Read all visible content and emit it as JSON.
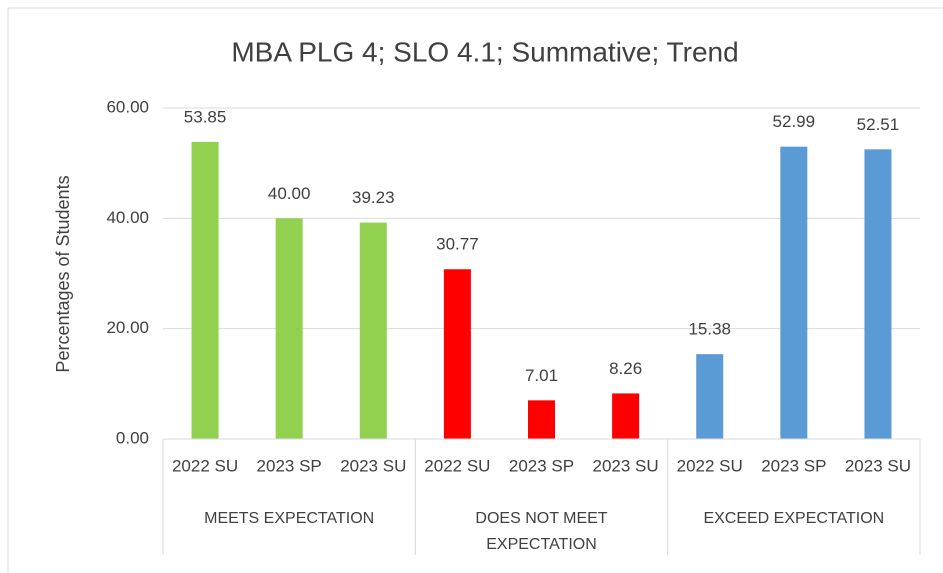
{
  "chart_data": {
    "type": "bar",
    "title": "MBA PLG 4; SLO 4.1; Summative; Trend",
    "ylabel": "Percentages of Students",
    "ylim": [
      0,
      60
    ],
    "yticks": [
      {
        "value": 0,
        "label": "0.00"
      },
      {
        "value": 20,
        "label": "20.00"
      },
      {
        "value": 40,
        "label": "40.00"
      },
      {
        "value": 60,
        "label": "60.00"
      }
    ],
    "grid": true,
    "groups": [
      {
        "name": "MEETS EXPECTATION",
        "color": "#92d050",
        "categories": [
          "2022 SU",
          "2023 SP",
          "2023 SU"
        ],
        "values": [
          53.85,
          40,
          39.23
        ],
        "value_labels": [
          "53.85",
          "40.00",
          "39.23"
        ]
      },
      {
        "name": "DOES NOT MEET EXPECTATION",
        "color": "#ff0000",
        "categories": [
          "2022 SU",
          "2023 SP",
          "2023 SU"
        ],
        "values": [
          30.77,
          7.01,
          8.26
        ],
        "value_labels": [
          "30.77",
          "7.01",
          "8.26"
        ]
      },
      {
        "name": "EXCEED EXPECTATION",
        "color": "#5b9bd5",
        "categories": [
          "2022 SU",
          "2023 SP",
          "2023 SU"
        ],
        "values": [
          15.38,
          52.99,
          52.51
        ],
        "value_labels": [
          "15.38",
          "52.99",
          "52.51"
        ]
      }
    ]
  }
}
